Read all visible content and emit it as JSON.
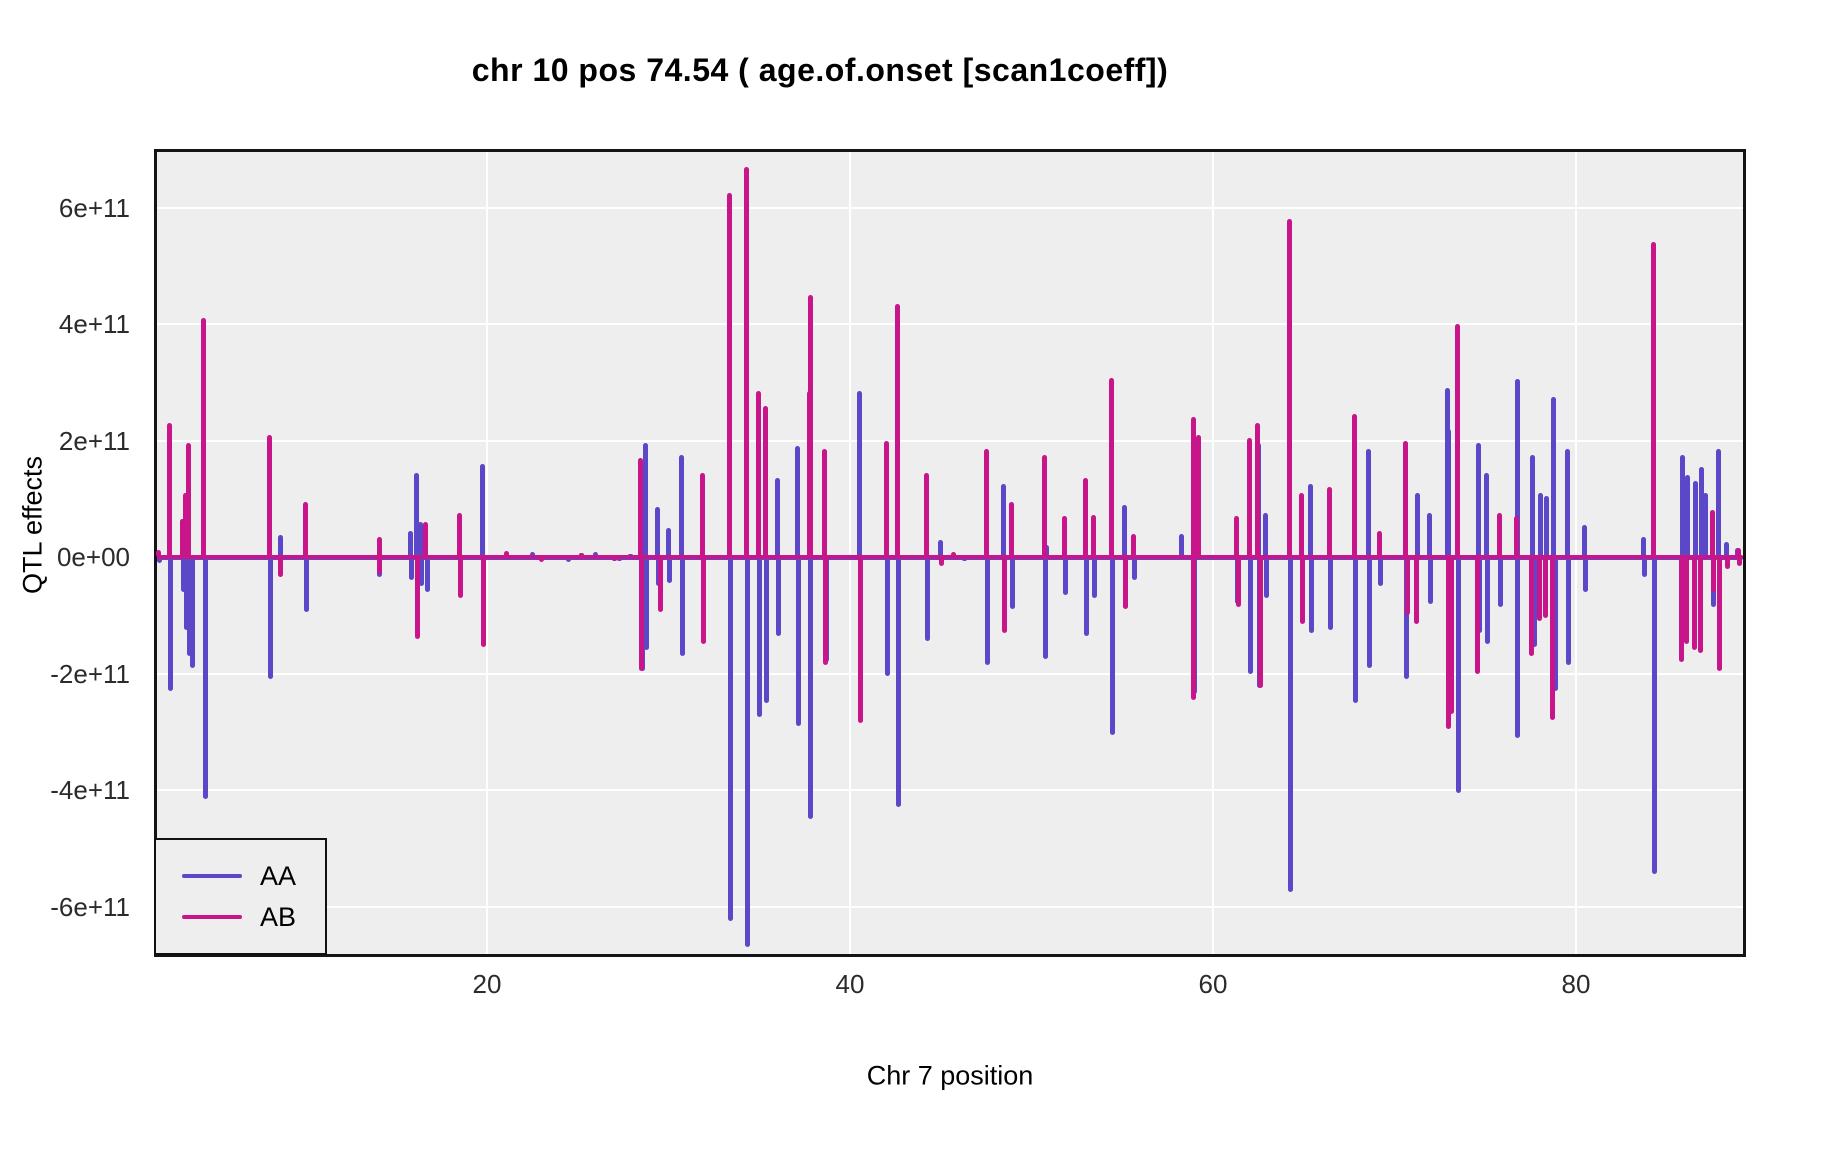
{
  "title": "chr 10 pos 74.54 ( age.of.onset  [scan1coeff])",
  "chart_data": {
    "type": "line",
    "title": "chr 10 pos 74.54 ( age.of.onset  [scan1coeff])",
    "xlabel": "Chr 7 position",
    "ylabel": "QTL effects",
    "x_ticks": [
      20,
      40,
      60,
      80
    ],
    "y_ticks": [
      {
        "label": "6e+11",
        "value_e11": 6
      },
      {
        "label": "4e+11",
        "value_e11": 4
      },
      {
        "label": "2e+11",
        "value_e11": 2
      },
      {
        "label": "0e+00",
        "value_e11": 0
      },
      {
        "label": "-2e+11",
        "value_e11": -2
      },
      {
        "label": "-4e+11",
        "value_e11": -4
      },
      {
        "label": "-6e+11",
        "value_e11": -6
      }
    ],
    "xlim": [
      1.8,
      90.2
    ],
    "ylim_e11": [
      -6.85,
      6.95
    ],
    "grid": "white major gridlines on gray panel",
    "panel_background": "#EEEEEE",
    "gridline_color": "#FFFFFF",
    "panel_border_color": "#141414",
    "units_note": "spike values in units of 1e11; format [x_position, effect]",
    "baseline_y": 0,
    "legend": {
      "position": "bottom-left",
      "entries": [
        {
          "name": "AA",
          "color": "#5A48C8"
        },
        {
          "name": "AB",
          "color": "#C9158A"
        }
      ]
    },
    "series": [
      {
        "name": "AA",
        "color": "#5A48C8",
        "spikes": [
          [
            1.95,
            -0.1
          ],
          [
            2.55,
            -2.3
          ],
          [
            3.25,
            0.65
          ],
          [
            3.3,
            -0.6
          ],
          [
            3.45,
            -1.25
          ],
          [
            3.6,
            -1.7
          ],
          [
            3.75,
            -1.9
          ],
          [
            4.5,
            -4.15
          ],
          [
            8.05,
            -2.1
          ],
          [
            8.6,
            0.38
          ],
          [
            10.05,
            -0.95
          ],
          [
            14.1,
            -0.35
          ],
          [
            15.8,
            0.45
          ],
          [
            15.85,
            -0.4
          ],
          [
            16.1,
            1.45
          ],
          [
            16.35,
            0.6
          ],
          [
            16.4,
            -0.5
          ],
          [
            16.7,
            -0.6
          ],
          [
            19.75,
            1.6
          ],
          [
            22.5,
            0.08
          ],
          [
            24.5,
            -0.08
          ],
          [
            26.0,
            0.08
          ],
          [
            27.3,
            -0.06
          ],
          [
            27.9,
            0.06
          ],
          [
            28.55,
            -1.95
          ],
          [
            28.75,
            1.95
          ],
          [
            28.8,
            -1.6
          ],
          [
            29.4,
            0.85
          ],
          [
            29.45,
            -0.5
          ],
          [
            30.0,
            0.5
          ],
          [
            30.05,
            -0.45
          ],
          [
            30.7,
            1.75
          ],
          [
            30.75,
            -1.7
          ],
          [
            33.4,
            -6.25
          ],
          [
            34.35,
            -6.7
          ],
          [
            35.0,
            -2.75
          ],
          [
            35.4,
            -2.5
          ],
          [
            36.0,
            1.35
          ],
          [
            36.05,
            -1.35
          ],
          [
            37.1,
            1.9
          ],
          [
            37.15,
            -2.9
          ],
          [
            37.85,
            -4.5
          ],
          [
            38.7,
            -1.8
          ],
          [
            40.55,
            2.85
          ],
          [
            42.05,
            -2.05
          ],
          [
            42.65,
            -4.3
          ],
          [
            44.25,
            -1.45
          ],
          [
            45.0,
            0.3
          ],
          [
            46.3,
            -0.06
          ],
          [
            47.55,
            -1.85
          ],
          [
            48.45,
            1.25
          ],
          [
            48.95,
            -0.9
          ],
          [
            50.75,
            -1.75
          ],
          [
            50.8,
            0.2
          ],
          [
            51.85,
            -0.65
          ],
          [
            53.05,
            -1.35
          ],
          [
            53.45,
            -0.7
          ],
          [
            54.45,
            -3.05
          ],
          [
            55.15,
            0.9
          ],
          [
            55.65,
            -0.4
          ],
          [
            58.25,
            0.4
          ],
          [
            59.0,
            -2.35
          ],
          [
            61.35,
            -0.8
          ],
          [
            62.05,
            -2.0
          ],
          [
            62.5,
            1.95
          ],
          [
            62.55,
            -2.25
          ],
          [
            62.9,
            0.75
          ],
          [
            62.95,
            -0.7
          ],
          [
            64.25,
            -5.75
          ],
          [
            65.35,
            1.25
          ],
          [
            65.4,
            -1.3
          ],
          [
            66.45,
            -1.25
          ],
          [
            67.85,
            -2.5
          ],
          [
            68.55,
            1.85
          ],
          [
            68.6,
            -1.9
          ],
          [
            69.25,
            -0.5
          ],
          [
            70.65,
            -2.1
          ],
          [
            71.25,
            1.1
          ],
          [
            71.95,
            0.75
          ],
          [
            72.0,
            -0.8
          ],
          [
            72.9,
            2.9
          ],
          [
            73.0,
            2.2
          ],
          [
            73.1,
            -0.6
          ],
          [
            73.5,
            -4.05
          ],
          [
            74.65,
            1.95
          ],
          [
            74.7,
            -1.3
          ],
          [
            75.05,
            1.45
          ],
          [
            75.1,
            -1.5
          ],
          [
            75.85,
            -0.85
          ],
          [
            76.75,
            3.05
          ],
          [
            76.8,
            -3.1
          ],
          [
            77.6,
            1.75
          ],
          [
            77.7,
            -1.55
          ],
          [
            78.05,
            1.1
          ],
          [
            78.35,
            1.05
          ],
          [
            78.75,
            2.75
          ],
          [
            78.85,
            -2.3
          ],
          [
            79.55,
            1.85
          ],
          [
            79.6,
            -1.85
          ],
          [
            80.45,
            0.55
          ],
          [
            80.5,
            -0.6
          ],
          [
            83.7,
            0.35
          ],
          [
            83.75,
            -0.35
          ],
          [
            84.3,
            -5.45
          ],
          [
            85.85,
            1.75
          ],
          [
            86.15,
            1.4
          ],
          [
            86.6,
            1.3
          ],
          [
            86.9,
            1.55
          ],
          [
            87.15,
            1.1
          ],
          [
            87.55,
            -0.85
          ],
          [
            87.85,
            1.85
          ],
          [
            88.3,
            0.25
          ],
          [
            88.9,
            0.15
          ]
        ]
      },
      {
        "name": "AB",
        "color": "#C9158A",
        "spikes": [
          [
            1.9,
            0.12
          ],
          [
            2.5,
            2.3
          ],
          [
            3.2,
            0.65
          ],
          [
            3.4,
            1.1
          ],
          [
            3.55,
            1.95
          ],
          [
            4.4,
            4.1
          ],
          [
            8.0,
            2.1
          ],
          [
            8.65,
            -0.35
          ],
          [
            10.0,
            0.95
          ],
          [
            14.05,
            0.35
          ],
          [
            14.1,
            -0.3
          ],
          [
            16.15,
            -1.4
          ],
          [
            16.6,
            0.6
          ],
          [
            18.5,
            0.75
          ],
          [
            18.55,
            -0.7
          ],
          [
            19.8,
            -1.55
          ],
          [
            21.1,
            0.1
          ],
          [
            23.0,
            -0.08
          ],
          [
            25.2,
            0.07
          ],
          [
            27.0,
            -0.06
          ],
          [
            28.45,
            1.7
          ],
          [
            28.5,
            -1.95
          ],
          [
            29.55,
            -0.95
          ],
          [
            31.9,
            1.45
          ],
          [
            31.95,
            -1.5
          ],
          [
            33.35,
            6.25
          ],
          [
            34.3,
            6.7
          ],
          [
            34.95,
            2.85
          ],
          [
            35.35,
            2.6
          ],
          [
            37.75,
            2.85
          ],
          [
            37.8,
            4.5
          ],
          [
            38.6,
            1.85
          ],
          [
            38.65,
            -1.85
          ],
          [
            40.6,
            -2.85
          ],
          [
            42.0,
            2.0
          ],
          [
            42.6,
            4.35
          ],
          [
            44.2,
            1.45
          ],
          [
            45.05,
            -0.15
          ],
          [
            45.7,
            0.08
          ],
          [
            47.5,
            1.85
          ],
          [
            48.5,
            -1.3
          ],
          [
            48.9,
            0.95
          ],
          [
            50.7,
            1.75
          ],
          [
            51.8,
            0.7
          ],
          [
            53.0,
            1.35
          ],
          [
            53.4,
            0.72
          ],
          [
            54.4,
            3.07
          ],
          [
            55.2,
            -0.9
          ],
          [
            55.6,
            0.4
          ],
          [
            58.9,
            2.4
          ],
          [
            58.95,
            -2.45
          ],
          [
            59.2,
            2.1
          ],
          [
            61.3,
            0.7
          ],
          [
            61.4,
            -0.85
          ],
          [
            62.0,
            2.05
          ],
          [
            62.45,
            2.3
          ],
          [
            62.6,
            -2.25
          ],
          [
            64.2,
            5.8
          ],
          [
            64.9,
            1.1
          ],
          [
            64.95,
            -1.15
          ],
          [
            66.4,
            1.2
          ],
          [
            67.8,
            2.45
          ],
          [
            69.2,
            0.45
          ],
          [
            70.6,
            2.0
          ],
          [
            70.7,
            -1.0
          ],
          [
            71.2,
            -1.15
          ],
          [
            72.95,
            -2.95
          ],
          [
            73.15,
            -2.7
          ],
          [
            73.45,
            4.0
          ],
          [
            74.6,
            -2.0
          ],
          [
            75.8,
            0.75
          ],
          [
            76.7,
            0.7
          ],
          [
            77.55,
            -1.7
          ],
          [
            78.0,
            -1.1
          ],
          [
            78.3,
            -1.05
          ],
          [
            78.7,
            -2.8
          ],
          [
            84.25,
            5.4
          ],
          [
            85.8,
            -1.8
          ],
          [
            86.1,
            -1.5
          ],
          [
            86.55,
            -1.6
          ],
          [
            86.85,
            -1.65
          ],
          [
            87.5,
            0.8
          ],
          [
            87.6,
            -0.6
          ],
          [
            87.9,
            -1.95
          ],
          [
            88.35,
            -0.2
          ],
          [
            88.95,
            0.15
          ],
          [
            89.0,
            -0.15
          ]
        ]
      }
    ]
  }
}
